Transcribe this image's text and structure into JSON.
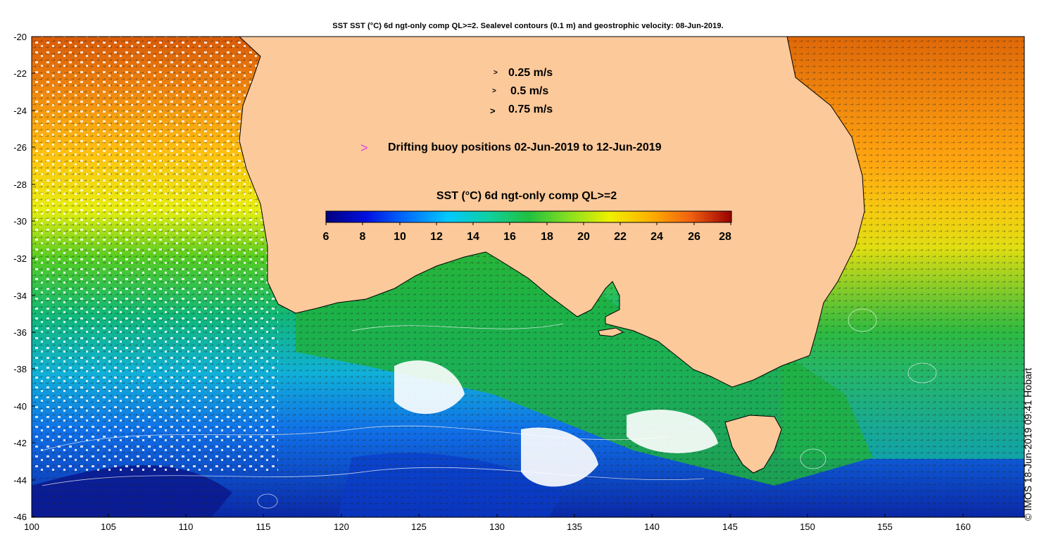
{
  "title": "SST SST (°C) 6d ngt-only comp QL>=2. Sealevel contours (0.1 m) and geostrophic velocity: 08-Jun-2019.",
  "axes": {
    "y_ticks": [
      "-20",
      "-22",
      "-24",
      "-26",
      "-28",
      "-30",
      "-32",
      "-34",
      "-36",
      "-38",
      "-40",
      "-42",
      "-44",
      "-46"
    ],
    "x_ticks": [
      "100",
      "105",
      "110",
      "115",
      "120",
      "125",
      "130",
      "135",
      "140",
      "145",
      "150",
      "155",
      "160"
    ]
  },
  "velocity_legend": [
    {
      "symbol": ">",
      "label": "0.25 m/s"
    },
    {
      "symbol": ">",
      "label": "0.5 m/s"
    },
    {
      "symbol": ">",
      "label": "0.75 m/s"
    }
  ],
  "buoy_legend": {
    "symbol": ">",
    "label": "Drifting buoy positions 02-Jun-2019 to 12-Jun-2019",
    "color": "#e040e0"
  },
  "colorbar": {
    "title": "SST (°C) 6d ngt-only comp QL>=2",
    "ticks": [
      "6",
      "8",
      "10",
      "12",
      "14",
      "16",
      "18",
      "20",
      "22",
      "24",
      "26",
      "28"
    ],
    "colors": [
      "#00007f",
      "#0000ff",
      "#007fff",
      "#00ffff",
      "#00cc88",
      "#22bb22",
      "#88dd22",
      "#eeee00",
      "#ffc000",
      "#ff8000",
      "#cc4000",
      "#8b0000"
    ]
  },
  "credit": "© IMOS 18-Jun-2019 09:41 Hobart",
  "colors": {
    "land": "#fcc99a",
    "ocean_warm": "#e07010",
    "ocean_cool": "#1050d0"
  }
}
